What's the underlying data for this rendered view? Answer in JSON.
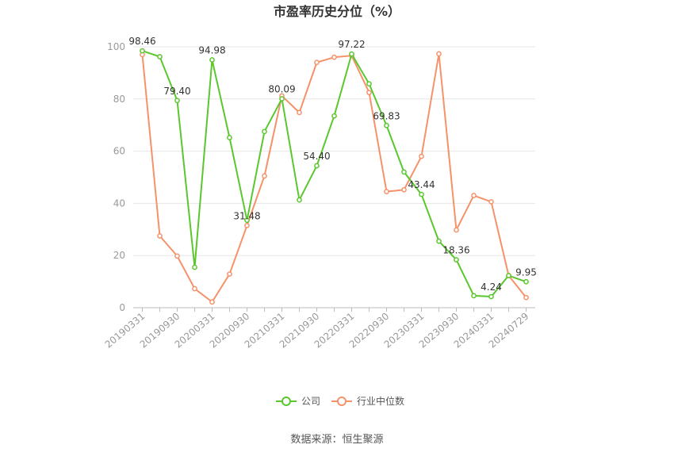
{
  "chart_data": {
    "type": "line",
    "title": "市盈率历史分位（%）",
    "x_tick_labels": [
      "20190331",
      "20190930",
      "20200331",
      "20200930",
      "20210331",
      "20210930",
      "20220331",
      "20220930",
      "20230331",
      "20230930",
      "20240331",
      "20240729"
    ],
    "ylim": [
      0,
      100
    ],
    "y_ticks": [
      "0",
      "20",
      "40",
      "60",
      "80",
      "100"
    ],
    "grid": true,
    "legend_position": "bottom-center",
    "series": [
      {
        "name": "公司",
        "color": "#5bc72e",
        "values": [
          98.46,
          96.2,
          79.4,
          15.5,
          94.98,
          65.2,
          33.5,
          67.5,
          80.09,
          41.3,
          54.4,
          73.5,
          97.22,
          85.8,
          69.83,
          52.0,
          43.44,
          25.5,
          18.36,
          4.6,
          4.24,
          12.3,
          9.95
        ],
        "labels": [
          "98.46",
          "",
          "79.40",
          "",
          "94.98",
          "",
          "",
          "",
          "80.09",
          "",
          "54.40",
          "",
          "97.22",
          "",
          "69.83",
          "",
          "43.44",
          "",
          "18.36",
          "",
          "4.24",
          "",
          "9.95"
        ]
      },
      {
        "name": "行业中位数",
        "color": "#f5926a",
        "values": [
          97.0,
          27.5,
          19.8,
          7.3,
          2.2,
          12.9,
          31.48,
          50.5,
          81.2,
          74.8,
          94.0,
          96.0,
          96.6,
          82.5,
          44.5,
          45.2,
          58.0,
          97.3,
          29.8,
          43.0,
          40.6,
          12.3,
          3.9
        ],
        "labels": [
          "",
          "",
          "",
          "",
          "",
          "",
          "31.48",
          "",
          "",
          "",
          "",
          "",
          "",
          "",
          "",
          "",
          "",
          "",
          "",
          "",
          "",
          "",
          ""
        ]
      }
    ]
  },
  "source": "数据来源：恒生聚源"
}
